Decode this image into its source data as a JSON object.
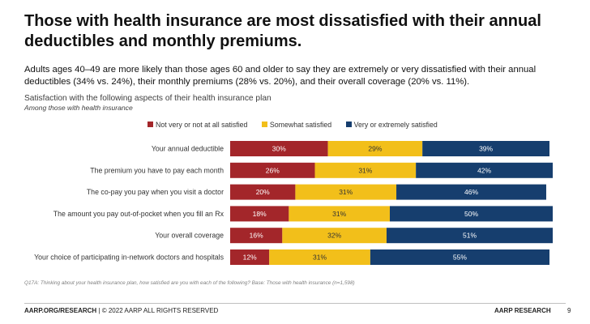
{
  "page": {
    "title": "Those with health insurance are most dissatisfied with their annual deductibles and monthly premiums.",
    "subtitle": "Adults ages 40–49 are more likely than those ages 60 and older to say they are extremely or very dissatisfied with their annual deductibles (34% vs. 24%), their monthly premiums (28% vs. 20%), and their overall coverage (20% vs. 11%).",
    "footnote": "Q17A: Thinking about your health insurance plan, how satisfied are you with each of the following? Base: Those with health insurance (n=1,598)",
    "footer_site": "AARP.ORG/RESEARCH",
    "footer_rights": " | © 2022 AARP ALL RIGHTS RESERVED",
    "footer_brand": "AARP RESEARCH",
    "page_number": "9"
  },
  "chart_data": {
    "type": "bar",
    "orientation": "horizontal",
    "stacked": true,
    "title": "Satisfaction with the following aspects of their health insurance plan",
    "subtitle": "Among those with health insurance",
    "categories": [
      "Your annual deductible",
      "The premium you have to pay each month",
      "The co-pay you pay when you visit a doctor",
      "The amount you pay out-of-pocket when you fill an Rx",
      "Your overall coverage",
      "Your choice of participating in-network doctors and hospitals"
    ],
    "series": [
      {
        "name": "Not very or not at all satisfied",
        "color": "#a3262a",
        "values": [
          30,
          26,
          20,
          18,
          16,
          12
        ]
      },
      {
        "name": "Somewhat satisfied",
        "color": "#f2bf1a",
        "values": [
          29,
          31,
          31,
          31,
          32,
          31
        ]
      },
      {
        "name": "Very or extremely satisfied",
        "color": "#163e6e",
        "values": [
          39,
          42,
          46,
          50,
          51,
          55
        ]
      }
    ],
    "value_suffix": "%",
    "legend_position": "top",
    "grid": false
  }
}
